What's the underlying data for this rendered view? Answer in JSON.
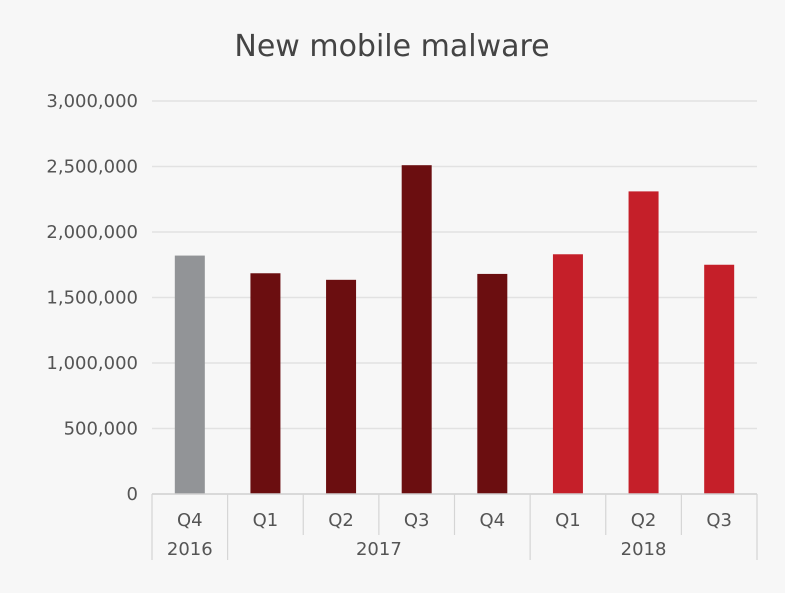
{
  "chart_data": {
    "type": "bar",
    "title": "New mobile malware",
    "xlabel": "",
    "ylabel": "",
    "ylim": [
      0,
      3000000
    ],
    "yticks": [
      0,
      500000,
      1000000,
      1500000,
      2000000,
      2500000,
      3000000
    ],
    "ytick_labels": [
      "0",
      "500,000",
      "1,000,000",
      "1,500,000",
      "2,000,000",
      "2,500,000",
      "3,000,000"
    ],
    "grid": true,
    "legend": "none",
    "categories": [
      "Q4",
      "Q1",
      "Q2",
      "Q3",
      "Q4",
      "Q1",
      "Q2",
      "Q3"
    ],
    "values": [
      1820000,
      1685000,
      1635000,
      2510000,
      1680000,
      1830000,
      2310000,
      1750000
    ],
    "bar_colors": [
      "#929497",
      "#6b0e10",
      "#6b0e10",
      "#6b0e10",
      "#6b0e10",
      "#c51f29",
      "#c51f29",
      "#c51f29"
    ],
    "groups": [
      {
        "label": "2016",
        "start": 0,
        "end": 0
      },
      {
        "label": "2017",
        "start": 1,
        "end": 4
      },
      {
        "label": "2018",
        "start": 5,
        "end": 7
      }
    ]
  }
}
